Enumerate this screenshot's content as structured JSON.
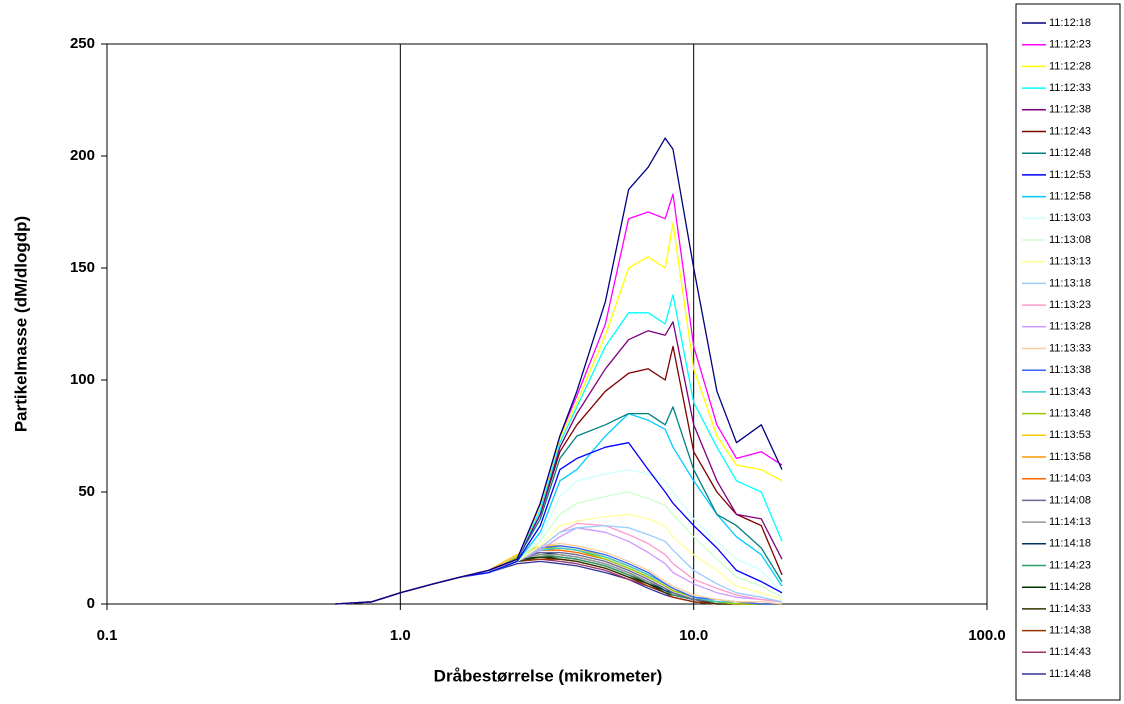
{
  "chart_data": {
    "type": "line",
    "x_axis_label": "Dråbestørrelse (mikrometer)",
    "y_axis_label": "Partikelmasse (dM/dlogdp)",
    "log_x": true,
    "grid_x": true,
    "legend": "right",
    "xlim": [
      0.1,
      100
    ],
    "xticks": [
      0.1,
      {
        "value": 1,
        "label": "1.0"
      },
      {
        "value": 10,
        "label": "10.0"
      },
      {
        "value": 100,
        "label": "100.0"
      }
    ],
    "ylim": [
      0,
      250
    ],
    "yticks": [
      0,
      50,
      100,
      150,
      200,
      250
    ],
    "x": [
      0.6,
      0.8,
      1.0,
      1.3,
      1.6,
      2.0,
      2.5,
      3.0,
      3.5,
      4.0,
      5.0,
      6.0,
      7.0,
      8.0,
      8.5,
      10,
      12,
      14,
      17,
      20
    ],
    "series": [
      {
        "name": "11:12:18",
        "color": "#000080",
        "values": [
          0,
          1,
          5,
          9,
          12,
          15,
          20,
          45,
          75,
          95,
          135,
          185,
          195,
          208,
          203,
          150,
          95,
          72,
          80,
          60
        ]
      },
      {
        "name": "11:12:23",
        "color": "#ff00ff",
        "values": [
          0,
          1,
          5,
          9,
          12,
          15,
          20,
          45,
          75,
          93,
          125,
          172,
          175,
          172,
          183,
          115,
          80,
          65,
          68,
          62
        ]
      },
      {
        "name": "11:12:28",
        "color": "#ffff00",
        "values": [
          0,
          1,
          5,
          9,
          12,
          15,
          20,
          44,
          74,
          90,
          120,
          150,
          155,
          150,
          170,
          105,
          75,
          62,
          60,
          55
        ]
      },
      {
        "name": "11:12:33",
        "color": "#00ffff",
        "values": [
          0,
          1,
          5,
          9,
          12,
          15,
          20,
          42,
          72,
          88,
          115,
          130,
          130,
          125,
          138,
          90,
          70,
          55,
          50,
          28
        ]
      },
      {
        "name": "11:12:38",
        "color": "#800080",
        "values": [
          0,
          1,
          5,
          9,
          12,
          15,
          20,
          40,
          70,
          85,
          105,
          118,
          122,
          120,
          126,
          80,
          55,
          40,
          38,
          20
        ]
      },
      {
        "name": "11:12:43",
        "color": "#800000",
        "values": [
          0,
          1,
          5,
          9,
          12,
          15,
          20,
          40,
          68,
          80,
          95,
          103,
          105,
          100,
          115,
          68,
          50,
          40,
          35,
          13
        ]
      },
      {
        "name": "11:12:48",
        "color": "#008080",
        "values": [
          0,
          1,
          5,
          9,
          12,
          15,
          20,
          38,
          65,
          75,
          80,
          85,
          85,
          80,
          88,
          60,
          40,
          35,
          25,
          10
        ]
      },
      {
        "name": "11:12:53",
        "color": "#0000ff",
        "values": [
          0,
          1,
          5,
          9,
          12,
          14,
          19,
          35,
          60,
          65,
          70,
          72,
          60,
          50,
          45,
          35,
          25,
          15,
          10,
          5
        ]
      },
      {
        "name": "11:12:58",
        "color": "#00ccff",
        "values": [
          0,
          1,
          5,
          9,
          12,
          14,
          19,
          32,
          55,
          60,
          75,
          85,
          82,
          78,
          70,
          55,
          40,
          30,
          22,
          8
        ]
      },
      {
        "name": "11:13:03",
        "color": "#ccffff",
        "values": [
          0,
          1,
          5,
          9,
          12,
          14,
          19,
          30,
          48,
          55,
          58,
          60,
          58,
          55,
          50,
          38,
          28,
          20,
          15,
          5
        ]
      },
      {
        "name": "11:13:08",
        "color": "#ccffcc",
        "values": [
          0,
          1,
          5,
          9,
          12,
          14,
          19,
          28,
          40,
          45,
          48,
          50,
          47,
          44,
          40,
          30,
          20,
          12,
          8,
          3
        ]
      },
      {
        "name": "11:13:13",
        "color": "#ffff99",
        "values": [
          0,
          1,
          5,
          9,
          12,
          14,
          19,
          26,
          35,
          37,
          39,
          40,
          38,
          35,
          30,
          22,
          15,
          8,
          5,
          2
        ]
      },
      {
        "name": "11:13:18",
        "color": "#99ccff",
        "values": [
          0,
          1,
          5,
          9,
          12,
          14,
          19,
          25,
          32,
          34,
          35,
          34,
          31,
          28,
          24,
          15,
          9,
          5,
          3,
          1
        ]
      },
      {
        "name": "11:13:23",
        "color": "#ff99cc",
        "values": [
          0,
          1,
          5,
          9,
          12,
          14,
          19,
          25,
          32,
          36,
          35,
          31,
          27,
          22,
          18,
          11,
          7,
          4,
          2,
          1
        ]
      },
      {
        "name": "11:13:28",
        "color": "#cc99ff",
        "values": [
          0,
          1,
          5,
          9,
          12,
          14,
          19,
          24,
          30,
          34,
          32,
          28,
          23,
          18,
          14,
          9,
          5,
          3,
          2,
          1
        ]
      },
      {
        "name": "11:13:33",
        "color": "#ffcc99",
        "values": [
          0,
          1,
          5,
          9,
          12,
          14,
          20,
          26,
          27,
          26,
          23,
          19,
          15,
          10,
          8,
          4,
          2,
          1,
          1,
          0
        ]
      },
      {
        "name": "11:13:38",
        "color": "#3366ff",
        "values": [
          0,
          1,
          5,
          9,
          12,
          14,
          20,
          25,
          26,
          25,
          22,
          18,
          14,
          9,
          7,
          3,
          2,
          1,
          0,
          0
        ]
      },
      {
        "name": "11:13:43",
        "color": "#33cccc",
        "values": [
          0,
          1,
          5,
          9,
          12,
          14,
          20,
          24,
          25,
          24,
          21,
          17,
          13,
          9,
          7,
          3,
          1,
          1,
          0,
          0
        ]
      },
      {
        "name": "11:13:48",
        "color": "#99cc00",
        "values": [
          0,
          1,
          5,
          9,
          12,
          14,
          21,
          25,
          25,
          24,
          20,
          16,
          12,
          8,
          6,
          3,
          1,
          0,
          0,
          0
        ]
      },
      {
        "name": "11:13:53",
        "color": "#ffcc00",
        "values": [
          0,
          1,
          5,
          9,
          12,
          15,
          22,
          26,
          26,
          25,
          21,
          17,
          13,
          9,
          7,
          3,
          1,
          0,
          0,
          0
        ]
      },
      {
        "name": "11:13:58",
        "color": "#ff9900",
        "values": [
          0,
          1,
          5,
          9,
          12,
          15,
          22,
          25,
          25,
          24,
          21,
          17,
          13,
          9,
          7,
          3,
          1,
          0,
          0,
          0
        ]
      },
      {
        "name": "11:14:03",
        "color": "#ff6600",
        "values": [
          0,
          1,
          5,
          9,
          12,
          15,
          22,
          24,
          24,
          23,
          20,
          16,
          12,
          8,
          6,
          3,
          1,
          0,
          0,
          0
        ]
      },
      {
        "name": "11:14:08",
        "color": "#666699",
        "values": [
          0,
          1,
          5,
          9,
          12,
          14,
          20,
          23,
          23,
          22,
          19,
          15,
          11,
          7,
          5,
          2,
          1,
          0,
          0,
          0
        ]
      },
      {
        "name": "11:14:13",
        "color": "#969696",
        "values": [
          0,
          1,
          5,
          9,
          12,
          14,
          20,
          22,
          22,
          21,
          18,
          14,
          10,
          7,
          5,
          2,
          1,
          0,
          0,
          0
        ]
      },
      {
        "name": "11:14:18",
        "color": "#003366",
        "values": [
          0,
          1,
          5,
          9,
          12,
          14,
          21,
          23,
          22,
          21,
          18,
          14,
          10,
          6,
          5,
          2,
          1,
          0,
          0,
          0
        ]
      },
      {
        "name": "11:14:23",
        "color": "#339966",
        "values": [
          0,
          1,
          5,
          9,
          12,
          14,
          20,
          22,
          21,
          20,
          17,
          13,
          10,
          6,
          4,
          2,
          1,
          0,
          0,
          0
        ]
      },
      {
        "name": "11:14:28",
        "color": "#003300",
        "values": [
          0,
          1,
          5,
          9,
          12,
          14,
          20,
          21,
          21,
          20,
          17,
          13,
          9,
          6,
          4,
          2,
          1,
          0,
          0,
          0
        ]
      },
      {
        "name": "11:14:33",
        "color": "#333300",
        "values": [
          0,
          1,
          5,
          9,
          12,
          14,
          19,
          21,
          20,
          19,
          16,
          12,
          9,
          5,
          4,
          2,
          0,
          0,
          0,
          0
        ]
      },
      {
        "name": "11:14:38",
        "color": "#993300",
        "values": [
          0,
          1,
          5,
          9,
          12,
          14,
          19,
          20,
          20,
          19,
          16,
          12,
          8,
          5,
          3,
          1,
          0,
          0,
          0,
          0
        ]
      },
      {
        "name": "11:14:43",
        "color": "#993366",
        "values": [
          0,
          1,
          5,
          9,
          12,
          14,
          19,
          20,
          19,
          18,
          15,
          11,
          8,
          5,
          3,
          1,
          0,
          0,
          0,
          0
        ]
      },
      {
        "name": "11:14:48",
        "color": "#333399",
        "values": [
          0,
          1,
          5,
          9,
          12,
          14,
          18,
          19,
          18,
          17,
          14,
          11,
          7,
          4,
          3,
          1,
          0,
          0,
          0,
          0
        ]
      }
    ]
  }
}
